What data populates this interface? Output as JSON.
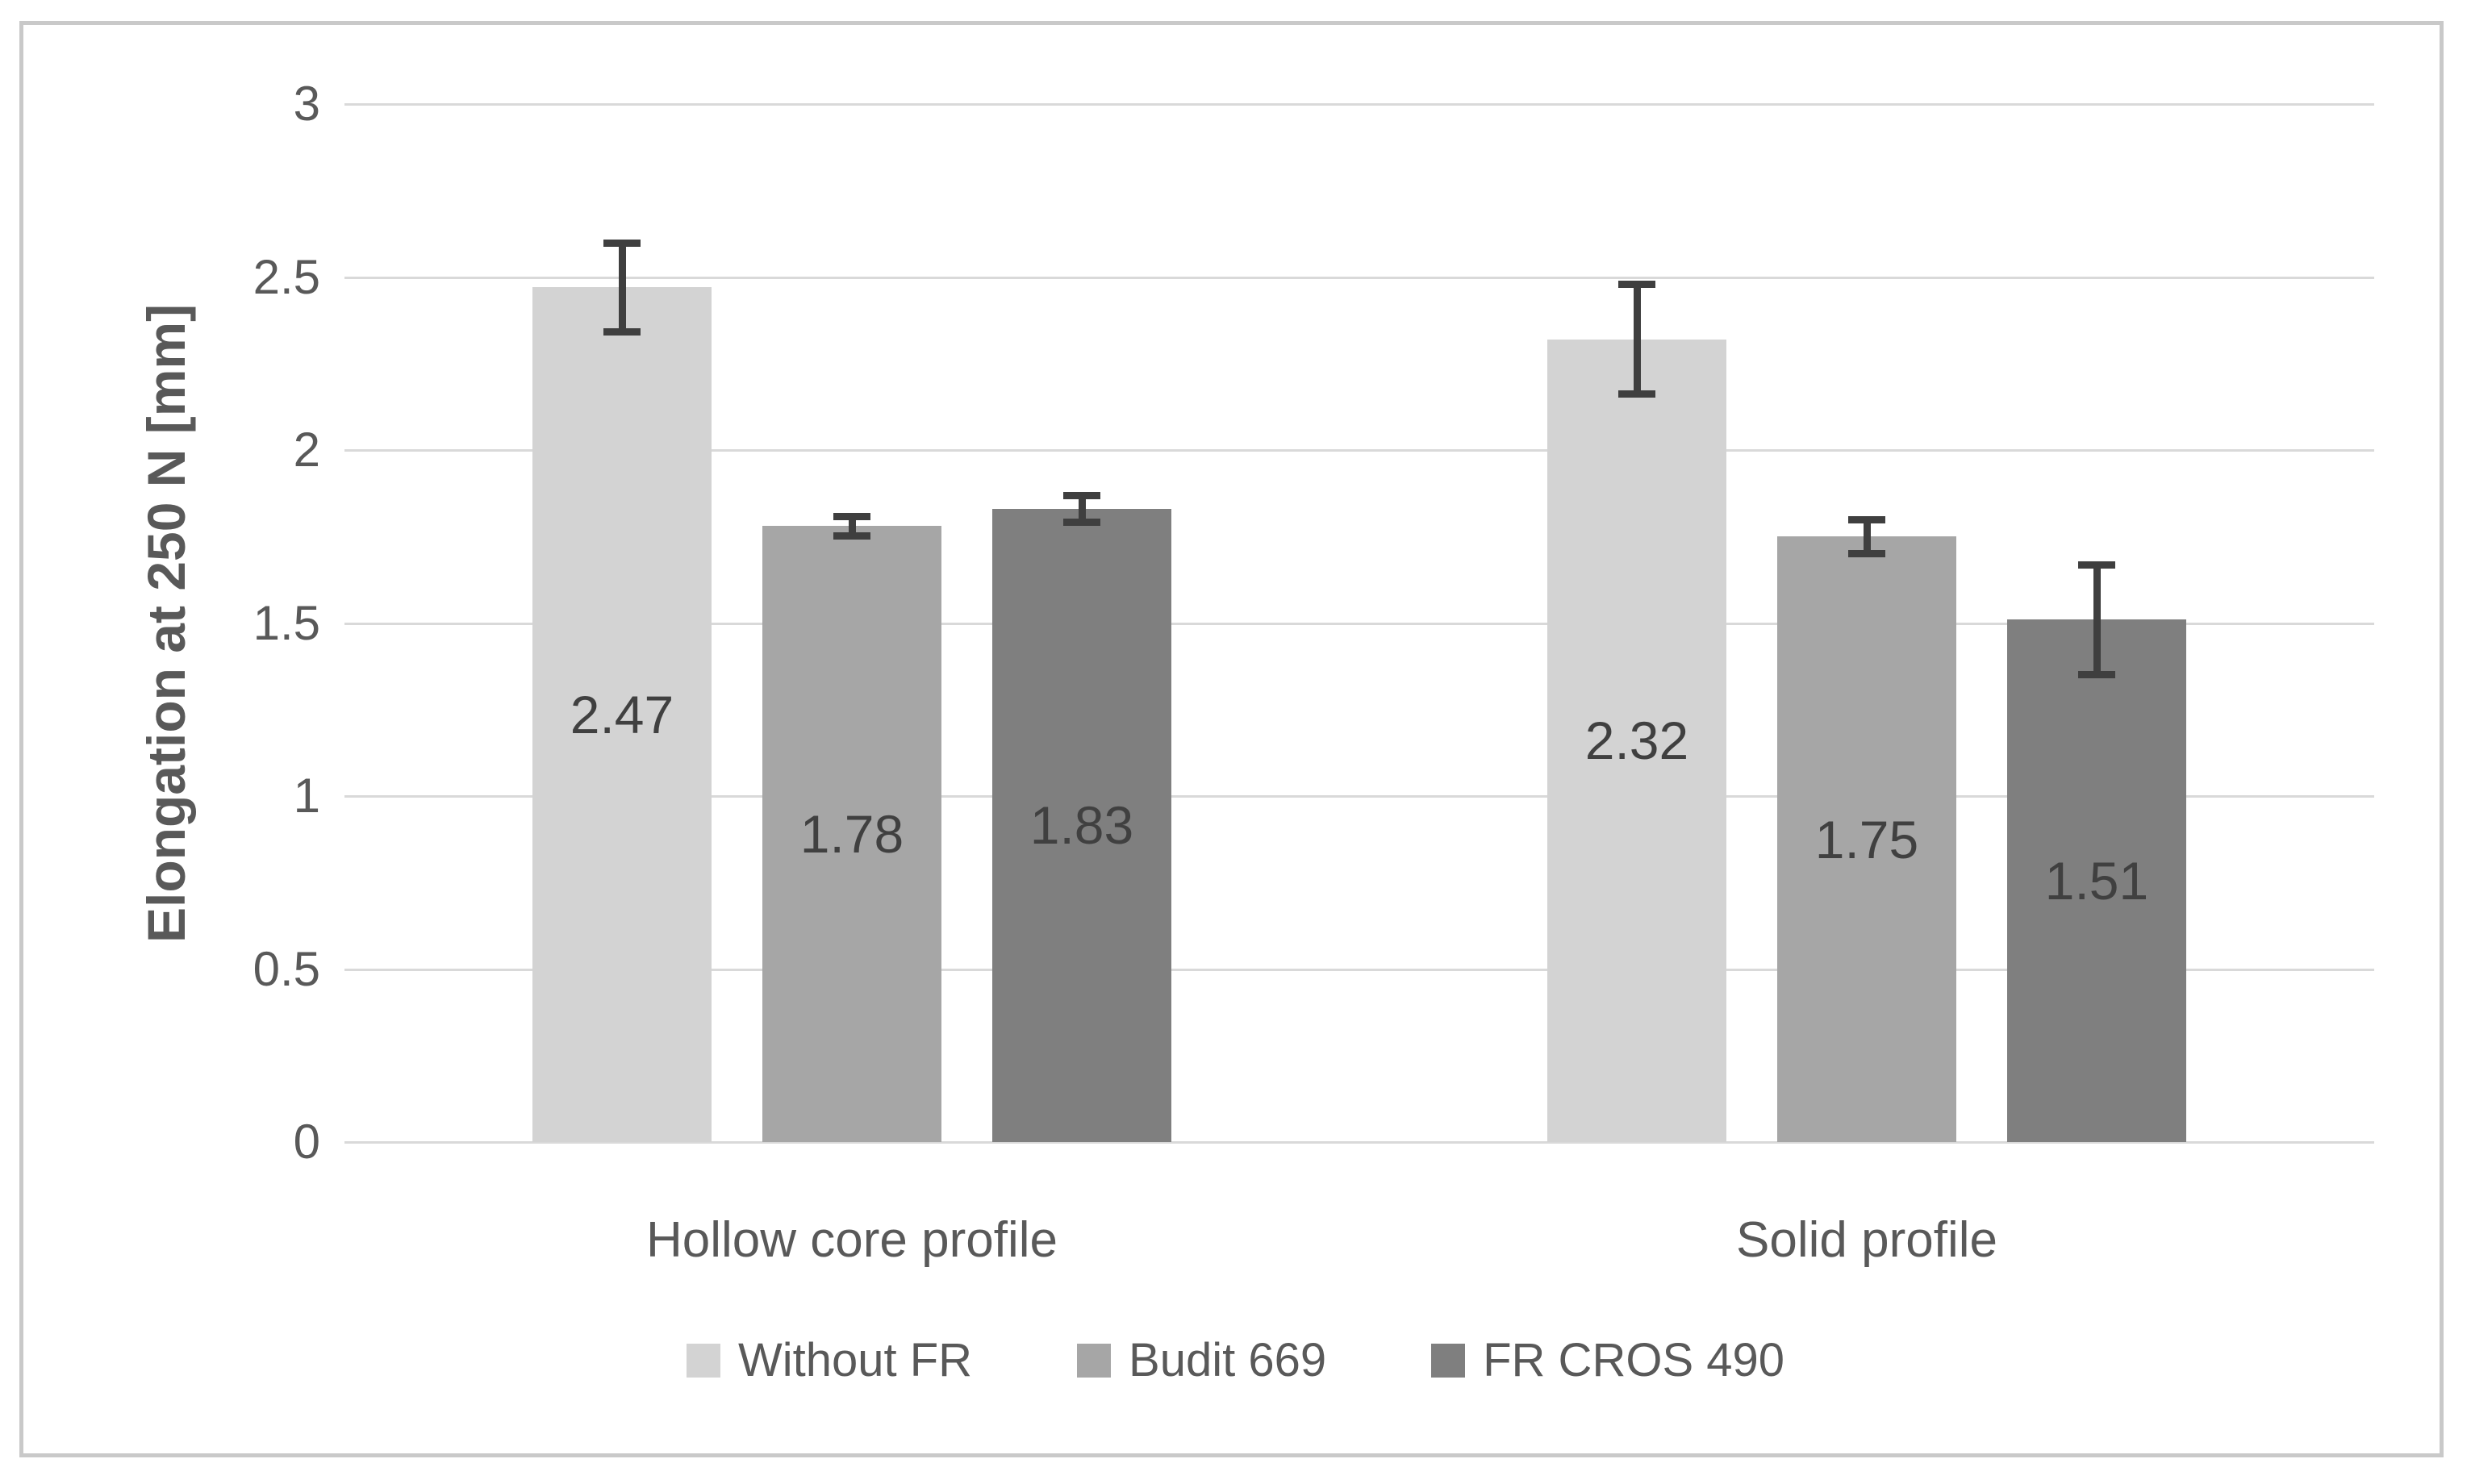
{
  "chart_data": {
    "type": "bar",
    "title": "",
    "ylabel": "Elongation at 250 N [mm]",
    "xlabel": "",
    "ylim": [
      0,
      3
    ],
    "ytick_labels": [
      "3",
      "2.5",
      "2",
      "1.5",
      "1",
      "0.5",
      "0"
    ],
    "grid": true,
    "legend_position": "bottom",
    "categories": [
      "Hollow core profile",
      "Solid profile"
    ],
    "series": [
      {
        "name": "Without FR",
        "color": "#d3d3d3",
        "values": [
          2.47,
          2.32
        ],
        "value_labels": [
          "2.47",
          "2.32"
        ],
        "error_bars": [
          0.13,
          0.16
        ]
      },
      {
        "name": "Budit 669",
        "color": "#a6a6a6",
        "values": [
          1.78,
          1.75
        ],
        "value_labels": [
          "1.78",
          "1.75"
        ],
        "error_bars": [
          0.03,
          0.05
        ]
      },
      {
        "name": "FR CROS 490",
        "color": "#7f7f7f",
        "values": [
          1.83,
          1.51
        ],
        "value_labels": [
          "1.83",
          "1.51"
        ],
        "error_bars": [
          0.04,
          0.16
        ]
      }
    ],
    "colors": {
      "background": "#ffffff",
      "frame_border": "#c9c9c9",
      "gridline": "#d9d9d9",
      "axis_text": "#595959",
      "value_label_text": "#404040",
      "error_bar": "#3f3f3f"
    }
  }
}
